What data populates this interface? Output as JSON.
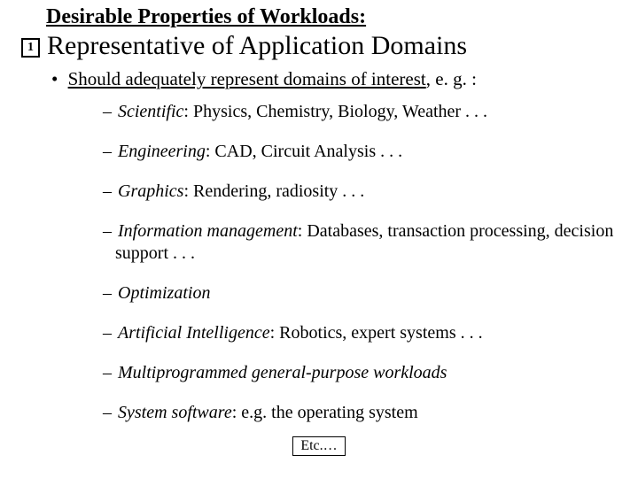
{
  "supertitle": "Desirable Properties of Workloads:",
  "numberBox": "1",
  "mainTitle": "Representative of Application Domains",
  "bullet1": {
    "dot": "•",
    "lead": "Should adequately represent domains of interest",
    "tail": ", e. g. :"
  },
  "items": [
    {
      "dash": "–",
      "term": "Scientific",
      "rest": ":  Physics, Chemistry, Biology, Weather . . ."
    },
    {
      "dash": "–",
      "term": "Engineering",
      "rest": ":  CAD, Circuit Analysis . . ."
    },
    {
      "dash": "–",
      "term": "Graphics",
      "rest": ": Rendering, radiosity . . ."
    },
    {
      "dash": "–",
      "term": "Information management",
      "rest": ":  Databases, transaction processing, decision support . . ."
    },
    {
      "dash": "–",
      "term": "Optimization",
      "rest": ""
    },
    {
      "dash": "–",
      "term": "Artificial Intelligence",
      "rest": ":  Robotics, expert systems . . ."
    },
    {
      "dash": "–",
      "term": "Multiprogrammed general-purpose workloads",
      "rest": ""
    },
    {
      "dash": "–",
      "term": "System software",
      "rest": ": e.g. the operating system"
    }
  ],
  "etc": "Etc.…"
}
